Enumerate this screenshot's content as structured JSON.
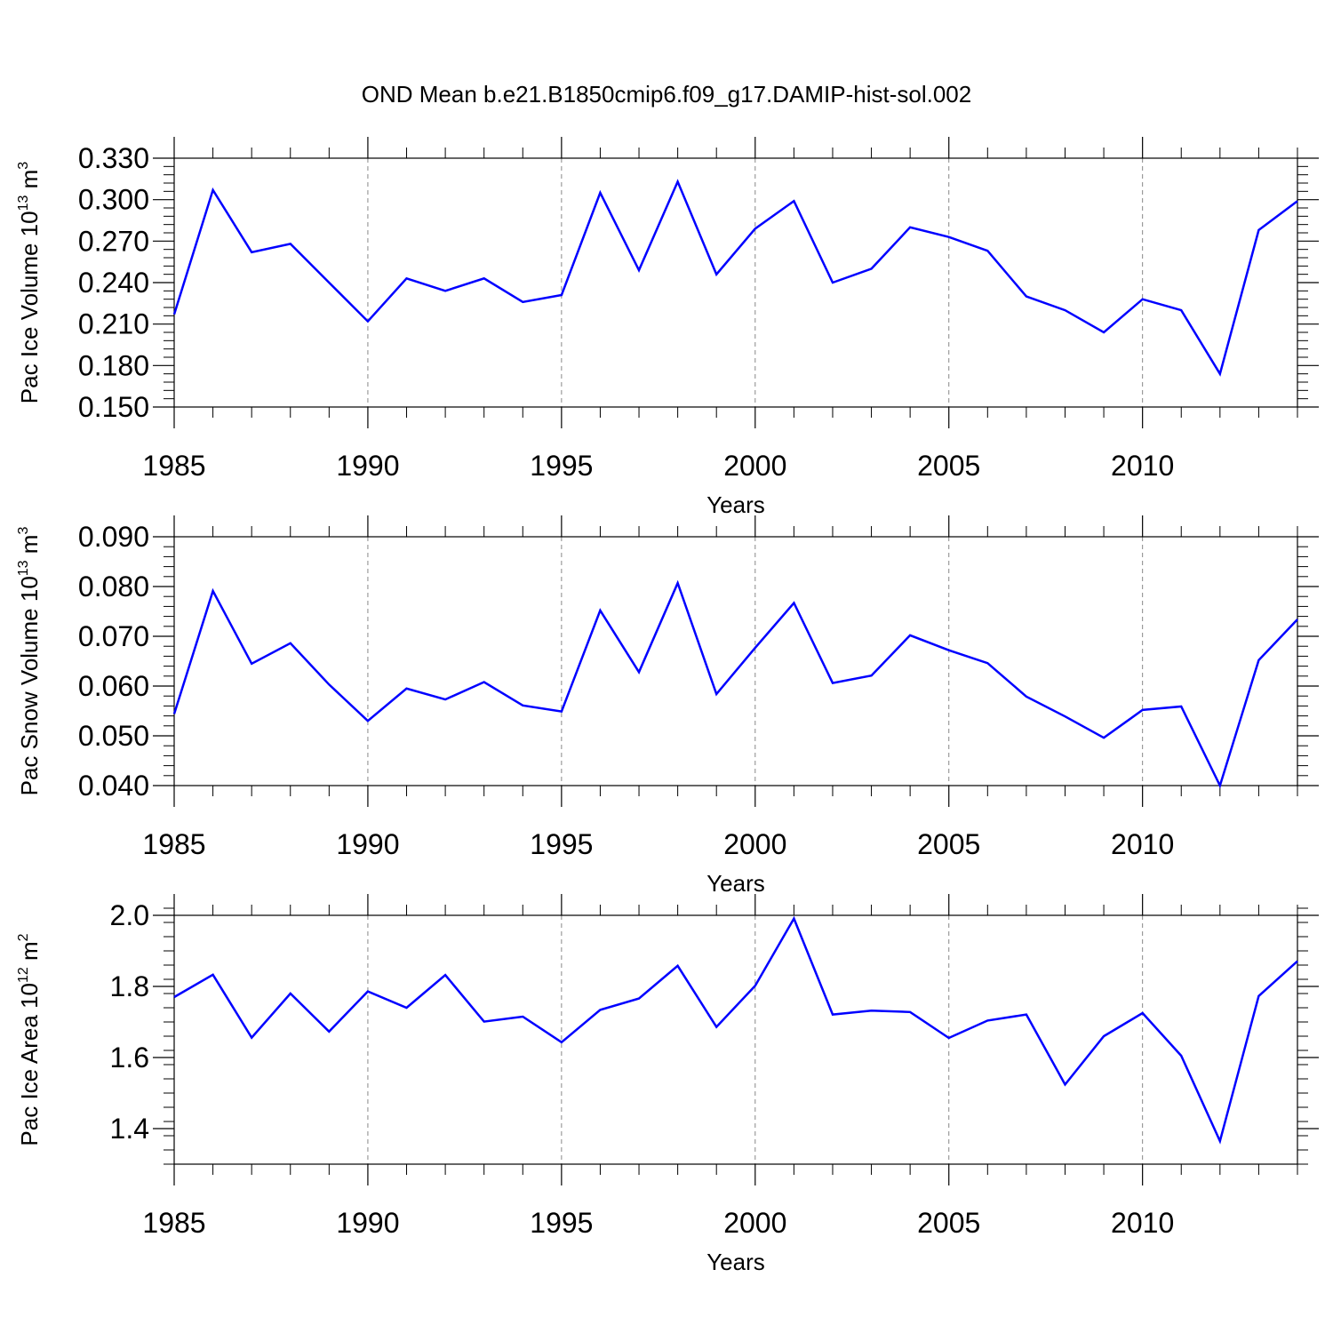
{
  "title": "OND Mean b.e21.B1850cmip6.f09_g17.DAMIP-hist-sol.002",
  "colors": {
    "line": "#0000ff",
    "axis": "#000000",
    "grid": "#888888"
  },
  "chart_data": [
    {
      "type": "line",
      "ylabel_main": "Pac Ice Volume 10",
      "ylabel_exp": "13",
      "ylabel_unit": " m",
      "ylabel_unit_exp": "3",
      "xlabel": "Years",
      "xlim": [
        1985,
        2014
      ],
      "ylim": [
        0.15,
        0.33
      ],
      "xticks": [
        1985,
        1990,
        1995,
        2000,
        2005,
        2010
      ],
      "xtick_labels": [
        "1985",
        "1990",
        "1995",
        "2000",
        "2005",
        "2010"
      ],
      "yticks": [
        0.15,
        0.18,
        0.21,
        0.24,
        0.27,
        0.3,
        0.33
      ],
      "ytick_labels": [
        "0.150",
        "0.180",
        "0.210",
        "0.240",
        "0.270",
        "0.300",
        "0.330"
      ],
      "y_minor_step": 0.006,
      "x": [
        1985,
        1986,
        1987,
        1988,
        1989,
        1990,
        1991,
        1992,
        1993,
        1994,
        1995,
        1996,
        1997,
        1998,
        1999,
        2000,
        2001,
        2002,
        2003,
        2004,
        2005,
        2006,
        2007,
        2008,
        2009,
        2010,
        2011,
        2012,
        2013,
        2014
      ],
      "values": [
        0.217,
        0.307,
        0.262,
        0.268,
        0.24,
        0.212,
        0.243,
        0.234,
        0.243,
        0.226,
        0.231,
        0.305,
        0.249,
        0.313,
        0.246,
        0.279,
        0.299,
        0.24,
        0.25,
        0.28,
        0.273,
        0.263,
        0.23,
        0.22,
        0.204,
        0.228,
        0.22,
        0.174,
        0.278,
        0.299
      ]
    },
    {
      "type": "line",
      "ylabel_main": "Pac Snow Volume 10",
      "ylabel_exp": "13",
      "ylabel_unit": " m",
      "ylabel_unit_exp": "3",
      "xlabel": "Years",
      "xlim": [
        1985,
        2014
      ],
      "ylim": [
        0.04,
        0.09
      ],
      "xticks": [
        1985,
        1990,
        1995,
        2000,
        2005,
        2010
      ],
      "xtick_labels": [
        "1985",
        "1990",
        "1995",
        "2000",
        "2005",
        "2010"
      ],
      "yticks": [
        0.04,
        0.05,
        0.06,
        0.07,
        0.08,
        0.09
      ],
      "ytick_labels": [
        "0.040",
        "0.050",
        "0.060",
        "0.070",
        "0.080",
        "0.090"
      ],
      "y_minor_step": 0.002,
      "x": [
        1985,
        1986,
        1987,
        1988,
        1989,
        1990,
        1991,
        1992,
        1993,
        1994,
        1995,
        1996,
        1997,
        1998,
        1999,
        2000,
        2001,
        2002,
        2003,
        2004,
        2005,
        2006,
        2007,
        2008,
        2009,
        2010,
        2011,
        2012,
        2013,
        2014
      ],
      "values": [
        0.0544,
        0.0791,
        0.0645,
        0.0686,
        0.0603,
        0.053,
        0.0595,
        0.0573,
        0.0608,
        0.0561,
        0.0549,
        0.0752,
        0.0628,
        0.0807,
        0.0584,
        0.0677,
        0.0767,
        0.0606,
        0.0621,
        0.0702,
        0.0672,
        0.0646,
        0.0579,
        0.0539,
        0.0496,
        0.0552,
        0.0559,
        0.04,
        0.0652,
        0.0734
      ]
    },
    {
      "type": "line",
      "ylabel_main": "Pac Ice Area 10",
      "ylabel_exp": "12",
      "ylabel_unit": " m",
      "ylabel_unit_exp": "2",
      "xlabel": "Years",
      "xlim": [
        1985,
        2014
      ],
      "ylim": [
        1.3,
        2.0
      ],
      "xticks": [
        1985,
        1990,
        1995,
        2000,
        2005,
        2010
      ],
      "xtick_labels": [
        "1985",
        "1990",
        "1995",
        "2000",
        "2005",
        "2010"
      ],
      "yticks": [
        1.4,
        1.6,
        1.8,
        2.0
      ],
      "ytick_labels": [
        "1.4",
        "1.6",
        "1.8",
        "2.0"
      ],
      "y_minor_step": 0.04,
      "x": [
        1985,
        1986,
        1987,
        1988,
        1989,
        1990,
        1991,
        1992,
        1993,
        1994,
        1995,
        1996,
        1997,
        1998,
        1999,
        2000,
        2001,
        2002,
        2003,
        2004,
        2005,
        2006,
        2007,
        2008,
        2009,
        2010,
        2011,
        2012,
        2013,
        2014
      ],
      "values": [
        1.77,
        1.833,
        1.656,
        1.78,
        1.673,
        1.786,
        1.74,
        1.832,
        1.701,
        1.715,
        1.643,
        1.734,
        1.766,
        1.858,
        1.686,
        1.802,
        1.991,
        1.721,
        1.732,
        1.728,
        1.655,
        1.704,
        1.721,
        1.524,
        1.66,
        1.725,
        1.605,
        1.365,
        1.773,
        1.871
      ]
    }
  ]
}
